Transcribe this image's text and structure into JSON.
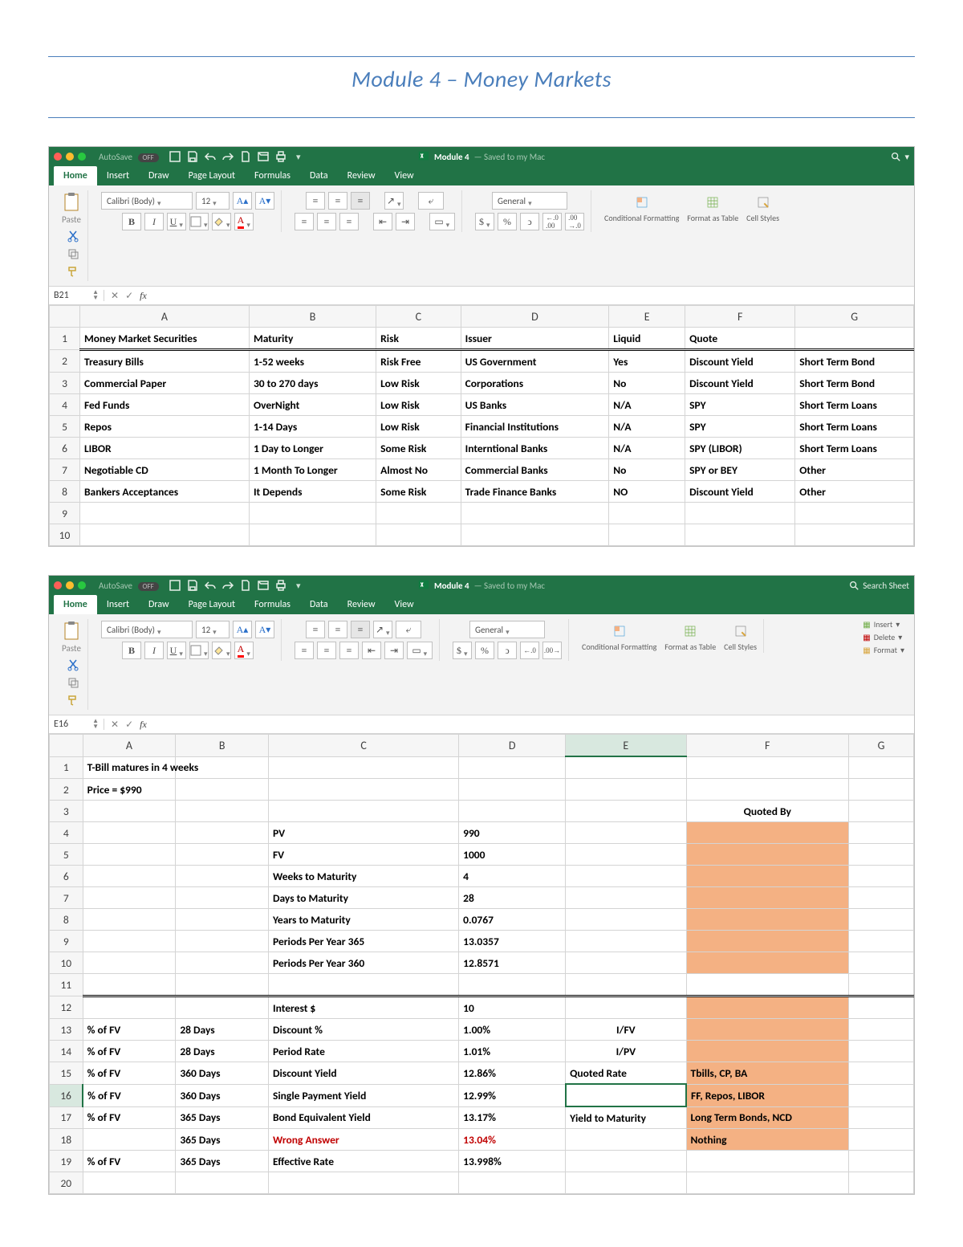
{
  "page_title": "Module 4 – Money Markets",
  "accent_color": "#4a7ebb",
  "excel_green": "#217346",
  "highlight_color": "#f4b183",
  "window1": {
    "autosave_label": "AutoSave",
    "autosave_state": "OFF",
    "filename": "Module 4",
    "saved_text": "— Saved to my Mac",
    "search_placeholder": "",
    "tabs": [
      "Home",
      "Insert",
      "Draw",
      "Page Layout",
      "Formulas",
      "Data",
      "Review",
      "View"
    ],
    "active_tab": "Home",
    "font_name": "Calibri (Body)",
    "font_size": "12",
    "number_format": "General",
    "paste_label": "Paste",
    "ribbon_cols": {
      "cond": "Conditional Formatting",
      "fmt_table": "Format as Table",
      "styles": "Cell Styles"
    },
    "cell_ref": "B21",
    "formula": "",
    "columns": [
      "A",
      "B",
      "C",
      "D",
      "E",
      "F",
      "G"
    ],
    "headers": {
      "A": "Money Market Securities",
      "B": "Maturity",
      "C": "Risk",
      "D": "Issuer",
      "E": "Liquid",
      "F": "Quote",
      "G": ""
    },
    "rows": [
      {
        "n": "2",
        "A": "Treasury Bills",
        "B": "1-52 weeks",
        "C": "Risk Free",
        "D": "US Government",
        "E": "Yes",
        "F": "Discount Yield",
        "G": "Short Term Bond"
      },
      {
        "n": "3",
        "A": "Commercial Paper",
        "B": "30 to 270 days",
        "C": "Low Risk",
        "D": "Corporations",
        "E": "No",
        "F": "Discount Yield",
        "G": "Short Term Bond"
      },
      {
        "n": "4",
        "A": "Fed Funds",
        "B": "OverNight",
        "C": "Low Risk",
        "D": "US Banks",
        "E": "N/A",
        "F": "SPY",
        "G": "Short Term Loans"
      },
      {
        "n": "5",
        "A": "Repos",
        "B": "1-14 Days",
        "C": "Low Risk",
        "D": "Financial Institutions",
        "E": "N/A",
        "F": "SPY",
        "G": "Short Term Loans"
      },
      {
        "n": "6",
        "A": "LIBOR",
        "B": "1 Day to Longer",
        "C": "Some Risk",
        "D": "Interntional Banks",
        "E": "N/A",
        "F": "SPY (LIBOR)",
        "G": "Short Term Loans"
      },
      {
        "n": "7",
        "A": "Negotiable CD",
        "B": "1 Month To Longer",
        "C": "Almost No",
        "D": "Commercial Banks",
        "E": "No",
        "F": "SPY or BEY",
        "G": "Other"
      },
      {
        "n": "8",
        "A": "Bankers Acceptances",
        "B": "It Depends",
        "C": "Some Risk",
        "D": "Trade Finance Banks",
        "E": "NO",
        "F": "Discount Yield",
        "G": "Other"
      }
    ],
    "empty_rows": [
      "9",
      "10"
    ]
  },
  "window2": {
    "autosave_label": "AutoSave",
    "autosave_state": "OFF",
    "filename": "Module 4",
    "saved_text": "— Saved to my Mac",
    "search_placeholder": "Search Sheet",
    "tabs": [
      "Home",
      "Insert",
      "Draw",
      "Page Layout",
      "Formulas",
      "Data",
      "Review",
      "View"
    ],
    "active_tab": "Home",
    "font_name": "Calibri (Body)",
    "font_size": "12",
    "number_format": "General",
    "paste_label": "Paste",
    "ribbon_cols": {
      "cond": "Conditional Formatting",
      "fmt_table": "Format as Table",
      "styles": "Cell Styles"
    },
    "right_ops": {
      "insert": "Insert",
      "delete": "Delete",
      "format": "Format"
    },
    "cell_ref": "E16",
    "formula": "",
    "columns": [
      "A",
      "B",
      "C",
      "D",
      "E",
      "F",
      "G"
    ],
    "selected_col": "E",
    "rows": [
      {
        "n": "1",
        "A": "T-Bill matures in 4 weeks",
        "B": "",
        "C": "",
        "D": "",
        "E": "",
        "F": "",
        "G": ""
      },
      {
        "n": "2",
        "A": "Price = $990",
        "B": "",
        "C": "",
        "D": "",
        "E": "",
        "F": "",
        "G": ""
      },
      {
        "n": "3",
        "A": "",
        "B": "",
        "C": "",
        "D": "",
        "E": "",
        "F": "Quoted By",
        "G": "",
        "Fcenter": true
      },
      {
        "n": "4",
        "A": "",
        "B": "",
        "C": "PV",
        "D": "990",
        "E": "",
        "F": "",
        "G": "",
        "Dnum": true,
        "Fhl": true
      },
      {
        "n": "5",
        "A": "",
        "B": "",
        "C": "FV",
        "D": "1000",
        "E": "",
        "F": "",
        "G": "",
        "Dnum": true,
        "Fhl": true
      },
      {
        "n": "6",
        "A": "",
        "B": "",
        "C": "Weeks to Maturity",
        "D": "4",
        "E": "",
        "F": "",
        "G": "",
        "Dnum": true,
        "Fhl": true
      },
      {
        "n": "7",
        "A": "",
        "B": "",
        "C": "Days to Maturity",
        "D": "28",
        "E": "",
        "F": "",
        "G": "",
        "Dnum": true,
        "Fhl": true
      },
      {
        "n": "8",
        "A": "",
        "B": "",
        "C": "Years to Maturity",
        "D": "0.0767",
        "E": "",
        "F": "",
        "G": "",
        "Dnum": true,
        "Fhl": true
      },
      {
        "n": "9",
        "A": "",
        "B": "",
        "C": "Periods Per Year 365",
        "D": "13.0357",
        "E": "",
        "F": "",
        "G": "",
        "Dnum": true,
        "Fhl": true
      },
      {
        "n": "10",
        "A": "",
        "B": "",
        "C": "Periods Per Year 360",
        "D": "12.8571",
        "E": "",
        "F": "",
        "G": "",
        "Dnum": true,
        "Fhl": true
      },
      {
        "n": "11",
        "A": "",
        "B": "",
        "C": "",
        "D": "",
        "E": "",
        "F": "",
        "G": "",
        "sep": "bot"
      },
      {
        "n": "12",
        "A": "",
        "B": "",
        "C": "Interest $",
        "D": "10",
        "E": "",
        "F": "",
        "G": "",
        "Dnum": true,
        "Fhl": true,
        "sep": "top"
      },
      {
        "n": "13",
        "A": "% of FV",
        "B": "28 Days",
        "C": "Discount %",
        "D": "1.00%",
        "E": "I/FV",
        "F": "",
        "G": "",
        "Dnum": true,
        "Fhl": true,
        "Ecenter": true
      },
      {
        "n": "14",
        "A": "% of FV",
        "B": "28 Days",
        "C": "Period Rate",
        "D": "1.01%",
        "E": "I/PV",
        "F": "",
        "G": "",
        "Dnum": true,
        "Fhl": true,
        "Ecenter": true
      },
      {
        "n": "15",
        "A": "% of FV",
        "B": "360 Days",
        "C": "Discount Yield",
        "D": "12.86%",
        "E": "Quoted Rate",
        "F": "Tbills, CP, BA",
        "G": "",
        "Dnum": true,
        "Fhl": true
      },
      {
        "n": "16",
        "A": "% of FV",
        "B": "360 Days",
        "C": "Single Payment Yield",
        "D": "12.99%",
        "E": "",
        "F": "FF, Repos, LIBOR",
        "G": "",
        "Dnum": true,
        "Fhl": true,
        "Esel": true
      },
      {
        "n": "17",
        "A": "% of FV",
        "B": "365 Days",
        "C": "Bond Equivalent Yield",
        "D": "13.17%",
        "E": "Yield to Maturity",
        "F": "Long Term Bonds, NCD",
        "G": "",
        "Dnum": true,
        "Fhl": true
      },
      {
        "n": "18",
        "A": "",
        "B": "365 Days",
        "C": "Wrong Answer",
        "D": "13.04%",
        "E": "",
        "F": "Nothing",
        "G": "",
        "Dnum": true,
        "Fhl": true,
        "Cred": true,
        "Dred": true,
        "Fbold": true
      },
      {
        "n": "19",
        "A": "% of FV",
        "B": "365 Days",
        "C": "Effective Rate",
        "D": "13.998%",
        "E": "",
        "F": "",
        "G": "",
        "Dnum": true
      },
      {
        "n": "20",
        "A": "",
        "B": "",
        "C": "",
        "D": "",
        "E": "",
        "F": "",
        "G": ""
      }
    ]
  }
}
